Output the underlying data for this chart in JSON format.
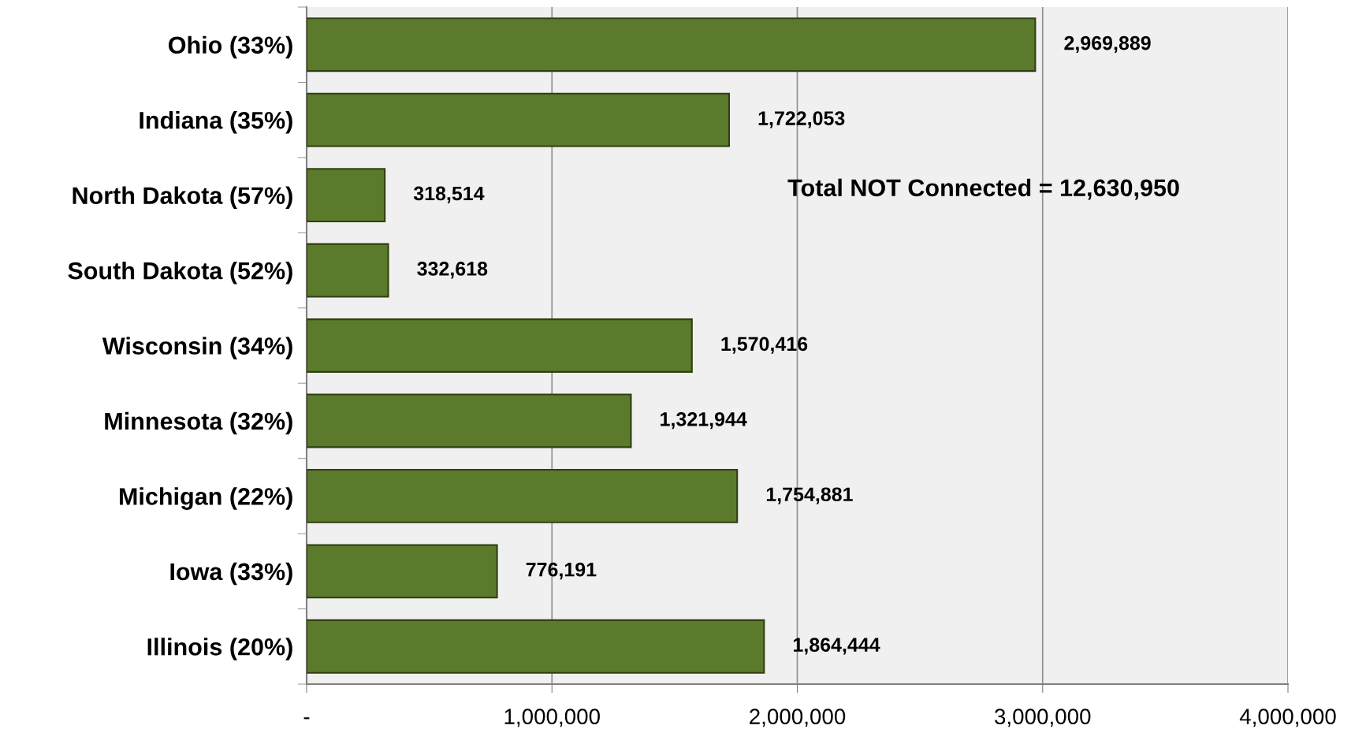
{
  "chart_data": {
    "type": "bar",
    "orientation": "horizontal",
    "categories": [
      "Ohio (33%)",
      "Indiana (35%)",
      "North Dakota (57%)",
      "South Dakota (52%)",
      "Wisconsin (34%)",
      "Minnesota (32%)",
      "Michigan (22%)",
      "Iowa (33%)",
      "Illinois (20%)"
    ],
    "values": [
      2969889,
      1722053,
      318514,
      332618,
      1570416,
      1321944,
      1754881,
      776191,
      1864444
    ],
    "value_labels": [
      "2,969,889",
      "1,722,053",
      "318,514",
      "332,618",
      "1,570,416",
      "1,321,944",
      "1,754,881",
      "776,191",
      "1,864,444"
    ],
    "color": "#5b7a2b",
    "xlim": [
      0,
      4000000
    ],
    "xticks": [
      {
        "value": 0,
        "label": "-"
      },
      {
        "value": 1000000,
        "label": "1,000,000"
      },
      {
        "value": 2000000,
        "label": "2,000,000"
      },
      {
        "value": 3000000,
        "label": "3,000,000"
      },
      {
        "value": 4000000,
        "label": "4,000,000"
      }
    ],
    "grid": "x",
    "annotations": [
      "Total NOT Connected = 12,630,950"
    ]
  }
}
